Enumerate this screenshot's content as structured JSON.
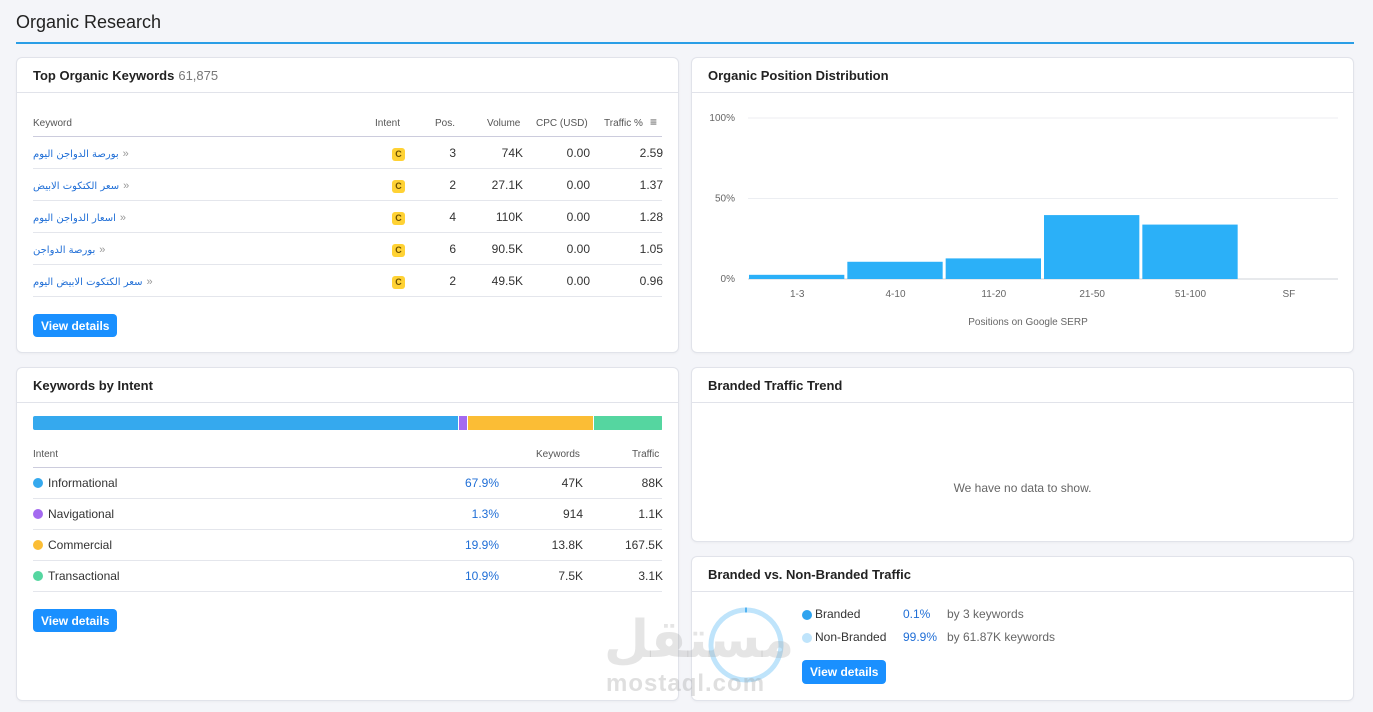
{
  "page": {
    "title": "Organic Research"
  },
  "top_keywords": {
    "title": "Top Organic Keywords",
    "count": "61,875",
    "columns": [
      "Keyword",
      "Intent",
      "Pos.",
      "Volume",
      "CPC (USD)",
      "Traffic %"
    ],
    "rows": [
      {
        "keyword": "بورصة الدواجن اليوم",
        "intent": "C",
        "pos": "3",
        "volume": "74K",
        "cpc": "0.00",
        "traffic": "2.59"
      },
      {
        "keyword": "سعر الكتكوت الابيض",
        "intent": "C",
        "pos": "2",
        "volume": "27.1K",
        "cpc": "0.00",
        "traffic": "1.37"
      },
      {
        "keyword": "اسعار الدواجن اليوم",
        "intent": "C",
        "pos": "4",
        "volume": "110K",
        "cpc": "0.00",
        "traffic": "1.28"
      },
      {
        "keyword": "بورصة الدواجن",
        "intent": "C",
        "pos": "6",
        "volume": "90.5K",
        "cpc": "0.00",
        "traffic": "1.05"
      },
      {
        "keyword": "سعر الكتكوت الابيض اليوم",
        "intent": "C",
        "pos": "2",
        "volume": "49.5K",
        "cpc": "0.00",
        "traffic": "0.96"
      }
    ],
    "button": "View details"
  },
  "position_distribution": {
    "title": "Organic Position Distribution"
  },
  "chart_data": {
    "type": "bar",
    "categories": [
      "1-3",
      "4-10",
      "11-20",
      "21-50",
      "51-100",
      "SF"
    ],
    "values": [
      2.6,
      10.7,
      12.8,
      39.7,
      33.8,
      0
    ],
    "yticks": [
      "100%",
      "50%",
      "0%"
    ],
    "ylim": [
      0,
      100
    ],
    "xlabel": "Positions on Google SERP",
    "ylabel": "",
    "bar_color": "#2bb0f8",
    "grid": true
  },
  "intent": {
    "title": "Keywords by Intent",
    "columns": [
      "Intent",
      "Keywords",
      "Traffic"
    ],
    "rows": [
      {
        "name": "Informational",
        "color": "#35a9ee",
        "share": 67.9,
        "percent": "67.9%",
        "keywords": "47K",
        "traffic": "88K"
      },
      {
        "name": "Navigational",
        "color": "#a46af0",
        "share": 1.3,
        "percent": "1.3%",
        "keywords": "914",
        "traffic": "1.1K"
      },
      {
        "name": "Commercial",
        "color": "#fbbd35",
        "share": 19.9,
        "percent": "19.9%",
        "keywords": "13.8K",
        "traffic": "167.5K"
      },
      {
        "name": "Transactional",
        "color": "#55d6a0",
        "share": 10.9,
        "percent": "10.9%",
        "keywords": "7.5K",
        "traffic": "3.1K"
      }
    ],
    "button": "View details"
  },
  "branded_trend": {
    "title": "Branded Traffic Trend",
    "empty_text": "We have no data to show."
  },
  "branded_vs": {
    "title": "Branded vs. Non-Branded Traffic",
    "rows": [
      {
        "label": "Branded",
        "color": "#2ea3ef",
        "share": 0.1,
        "percent": "0.1%",
        "detail": "by 3 keywords"
      },
      {
        "label": "Non-Branded",
        "color": "#bfe4fb",
        "share": 99.9,
        "percent": "99.9%",
        "detail": "by 61.87K keywords"
      }
    ],
    "button": "View details"
  },
  "watermark": {
    "arabic": "مستقل",
    "latin": "mostaql.com"
  }
}
